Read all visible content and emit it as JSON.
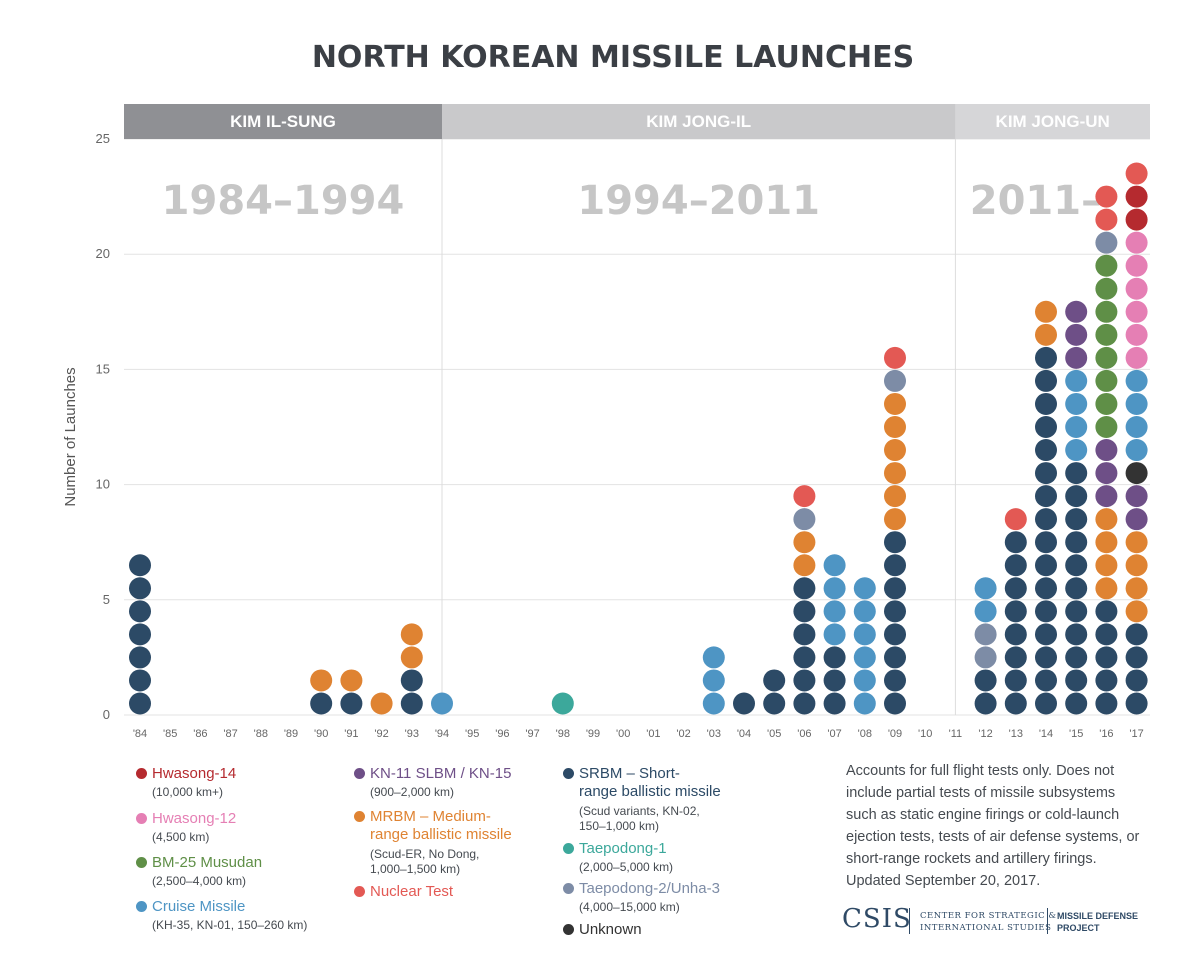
{
  "title": "NORTH KOREAN MISSILE LAUNCHES",
  "chart_data": {
    "type": "dot-stack",
    "title": "NORTH KOREAN MISSILE LAUNCHES",
    "ylabel": "Number of Launches",
    "ylim": [
      0,
      25
    ],
    "y_ticks": [
      0,
      5,
      10,
      15,
      20,
      25
    ],
    "grid": true,
    "categories": [
      "'84",
      "'85",
      "'86",
      "'87",
      "'88",
      "'89",
      "'90",
      "'91",
      "'92",
      "'93",
      "'94",
      "'95",
      "'96",
      "'97",
      "'98",
      "'99",
      "'00",
      "'01",
      "'02",
      "'03",
      "'04",
      "'05",
      "'06",
      "'07",
      "'08",
      "'09",
      "'10",
      "'11",
      "'12",
      "'13",
      "'14",
      "'15",
      "'16",
      "'17"
    ],
    "eras": [
      {
        "leader": "KIM IL-SUNG",
        "years": "1984–1994",
        "from": "'84",
        "to": "'94"
      },
      {
        "leader": "KIM JONG-IL",
        "years": "1994–2011",
        "from": "'94",
        "to": "'11"
      },
      {
        "leader": "KIM JONG-UN",
        "years": "2011–",
        "from": "'11",
        "to": "'17"
      }
    ],
    "series": [
      {
        "key": "hwasong14",
        "name": "Hwasong-14",
        "range": "(10,000 km+)",
        "color": "#b52a2f"
      },
      {
        "key": "hwasong12",
        "name": "Hwasong-12",
        "range": "(4,500 km)",
        "color": "#e57fb4"
      },
      {
        "key": "musudan",
        "name": "BM-25 Musudan",
        "range": "(2,500–4,000 km)",
        "color": "#5f8f47"
      },
      {
        "key": "cruise",
        "name": "Cruise Missile",
        "range": "(KH-35, KN-01, 150–260 km)",
        "color": "#4e95c4"
      },
      {
        "key": "kn11",
        "name": "KN-11 SLBM / KN-15",
        "range": "(900–2,000 km)",
        "color": "#6e4f87"
      },
      {
        "key": "mrbm",
        "name": "MRBM – Medium-range ballistic missile",
        "range": "(Scud-ER, No Dong, 1,000–1,500 km)",
        "color": "#df8332"
      },
      {
        "key": "nuclear",
        "name": "Nuclear Test",
        "range": "",
        "color": "#e35954"
      },
      {
        "key": "srbm",
        "name": "SRBM – Short-range ballistic missile",
        "range": "(Scud variants, KN-02, 150–1,000 km)",
        "color": "#2c4a66"
      },
      {
        "key": "taepodong1",
        "name": "Taepodong-1",
        "range": "(2,000–5,000 km)",
        "color": "#3ca89b"
      },
      {
        "key": "taepodong2",
        "name": "Taepodong-2/Unha-3",
        "range": "(4,000–15,000 km)",
        "color": "#7d8ca6"
      },
      {
        "key": "unknown",
        "name": "Unknown",
        "range": "",
        "color": "#333333"
      }
    ],
    "stacks": [
      {
        "year": "'84",
        "counts": [
          [
            "srbm",
            7
          ]
        ]
      },
      {
        "year": "'90",
        "counts": [
          [
            "srbm",
            1
          ],
          [
            "mrbm",
            1
          ]
        ]
      },
      {
        "year": "'91",
        "counts": [
          [
            "srbm",
            1
          ],
          [
            "mrbm",
            1
          ]
        ]
      },
      {
        "year": "'92",
        "counts": [
          [
            "mrbm",
            1
          ]
        ]
      },
      {
        "year": "'93",
        "counts": [
          [
            "srbm",
            2
          ],
          [
            "mrbm",
            2
          ]
        ]
      },
      {
        "year": "'94",
        "counts": [
          [
            "cruise",
            1
          ]
        ]
      },
      {
        "year": "'98",
        "counts": [
          [
            "taepodong1",
            1
          ]
        ]
      },
      {
        "year": "'03",
        "counts": [
          [
            "cruise",
            3
          ]
        ]
      },
      {
        "year": "'04",
        "counts": [
          [
            "srbm",
            1
          ]
        ]
      },
      {
        "year": "'05",
        "counts": [
          [
            "srbm",
            2
          ]
        ]
      },
      {
        "year": "'06",
        "counts": [
          [
            "srbm",
            6
          ],
          [
            "mrbm",
            2
          ],
          [
            "taepodong2",
            1
          ],
          [
            "nuclear",
            1
          ]
        ]
      },
      {
        "year": "'07",
        "counts": [
          [
            "srbm",
            3
          ],
          [
            "cruise",
            4
          ]
        ]
      },
      {
        "year": "'08",
        "counts": [
          [
            "cruise",
            6
          ]
        ]
      },
      {
        "year": "'09",
        "counts": [
          [
            "srbm",
            8
          ],
          [
            "mrbm",
            6
          ],
          [
            "taepodong2",
            1
          ],
          [
            "nuclear",
            1
          ]
        ]
      },
      {
        "year": "'12",
        "counts": [
          [
            "srbm",
            2
          ],
          [
            "taepodong2",
            2
          ],
          [
            "cruise",
            2
          ]
        ]
      },
      {
        "year": "'13",
        "counts": [
          [
            "srbm",
            8
          ],
          [
            "nuclear",
            1
          ]
        ]
      },
      {
        "year": "'14",
        "counts": [
          [
            "srbm",
            16
          ],
          [
            "mrbm",
            2
          ]
        ]
      },
      {
        "year": "'15",
        "counts": [
          [
            "srbm",
            11
          ],
          [
            "cruise",
            4
          ],
          [
            "kn11",
            3
          ]
        ]
      },
      {
        "year": "'16",
        "counts": [
          [
            "srbm",
            5
          ],
          [
            "mrbm",
            4
          ],
          [
            "kn11",
            3
          ],
          [
            "musudan",
            8
          ],
          [
            "taepodong2",
            1
          ],
          [
            "nuclear",
            2
          ]
        ]
      },
      {
        "year": "'17",
        "counts": [
          [
            "srbm",
            4
          ],
          [
            "mrbm",
            4
          ],
          [
            "kn11",
            2
          ],
          [
            "unknown",
            1
          ],
          [
            "cruise",
            4
          ],
          [
            "hwasong12",
            6
          ],
          [
            "hwasong14",
            2
          ],
          [
            "nuclear",
            1
          ]
        ]
      }
    ]
  },
  "legend": {
    "col1": [
      {
        "name": "Hwasong-14",
        "sub": "(10,000 km+)",
        "color": "#b52a2f"
      },
      {
        "name": "Hwasong-12",
        "sub": "(4,500 km)",
        "color": "#e57fb4"
      },
      {
        "name": "BM-25 Musudan",
        "sub": "(2,500–4,000 km)",
        "color": "#5f8f47"
      },
      {
        "name": "Cruise Missile",
        "sub": "(KH-35, KN-01, 150–260 km)",
        "color": "#4e95c4"
      }
    ],
    "col2": [
      {
        "name": "KN-11 SLBM / KN-15",
        "sub": "(900–2,000 km)",
        "color": "#6e4f87"
      },
      {
        "name1": "MRBM – Medium-",
        "name2": "range ballistic missile",
        "sub1": "(Scud-ER, No Dong,",
        "sub2": "1,000–1,500 km)",
        "color": "#df8332"
      },
      {
        "name": "Nuclear Test",
        "color": "#e35954"
      }
    ],
    "col3": [
      {
        "name1": "SRBM – Short-",
        "name2": "range ballistic missile",
        "sub1": "(Scud variants, KN-02,",
        "sub2": "150–1,000 km)",
        "color": "#2c4a66"
      },
      {
        "name": "Taepodong-1",
        "sub": "(2,000–5,000 km)",
        "color": "#3ca89b"
      },
      {
        "name": "Taepodong-2/Unha-3",
        "sub": "(4,000–15,000 km)",
        "color": "#7d8ca6"
      },
      {
        "name": "Unknown",
        "color": "#333333"
      }
    ]
  },
  "note": "Accounts for full flight tests only. Does not include partial tests of missile subsystems such as static engine firings or cold-launch ejection tests, tests of air defense systems, or short-range rockets and artillery firings. Updated September 20, 2017.",
  "logo": {
    "main": "CSIS",
    "center_line1": "CENTER FOR STRATEGIC &",
    "center_line2": "INTERNATIONAL STUDIES",
    "project_line1": "MISSILE DEFENSE",
    "project_line2": "PROJECT"
  }
}
